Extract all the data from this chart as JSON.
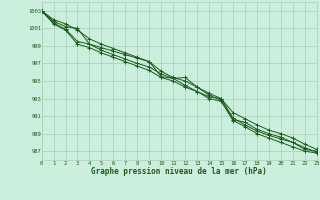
{
  "title": "Graphe pression niveau de la mer (hPa)",
  "bg_color": "#cceedd",
  "grid_color": "#aaccbb",
  "line_color": "#1a5c1a",
  "xlim": [
    0,
    23
  ],
  "ylim": [
    986.0,
    1004.0
  ],
  "yticks": [
    987,
    989,
    991,
    993,
    995,
    997,
    999,
    1001,
    1003
  ],
  "xticks": [
    0,
    1,
    2,
    3,
    4,
    5,
    6,
    7,
    8,
    9,
    10,
    11,
    12,
    13,
    14,
    15,
    16,
    17,
    18,
    19,
    20,
    21,
    22,
    23
  ],
  "series": [
    [
      1003.0,
      1001.8,
      1001.2,
      1001.0,
      999.2,
      998.8,
      998.4,
      998.0,
      997.6,
      997.2,
      995.5,
      995.3,
      995.4,
      994.3,
      993.4,
      992.8,
      990.6,
      990.3,
      989.5,
      989.0,
      988.6,
      988.0,
      987.2,
      987.0
    ],
    [
      1003.0,
      1001.6,
      1000.9,
      999.5,
      999.2,
      998.5,
      998.0,
      997.5,
      997.0,
      996.6,
      995.8,
      995.3,
      994.5,
      993.8,
      993.2,
      993.0,
      990.8,
      990.0,
      989.3,
      988.8,
      988.4,
      988.0,
      987.4,
      986.9
    ],
    [
      1003.0,
      1002.0,
      1001.5,
      1000.8,
      999.8,
      999.2,
      998.7,
      998.2,
      997.7,
      997.2,
      996.1,
      995.4,
      995.0,
      994.3,
      993.6,
      993.0,
      991.4,
      990.7,
      990.0,
      989.4,
      989.0,
      988.5,
      987.8,
      987.2
    ],
    [
      1003.0,
      1001.5,
      1000.8,
      999.2,
      998.8,
      998.2,
      997.7,
      997.2,
      996.7,
      996.2,
      995.4,
      995.0,
      994.3,
      993.8,
      993.0,
      992.7,
      990.5,
      989.8,
      989.0,
      988.5,
      988.0,
      987.5,
      987.0,
      986.8
    ]
  ]
}
